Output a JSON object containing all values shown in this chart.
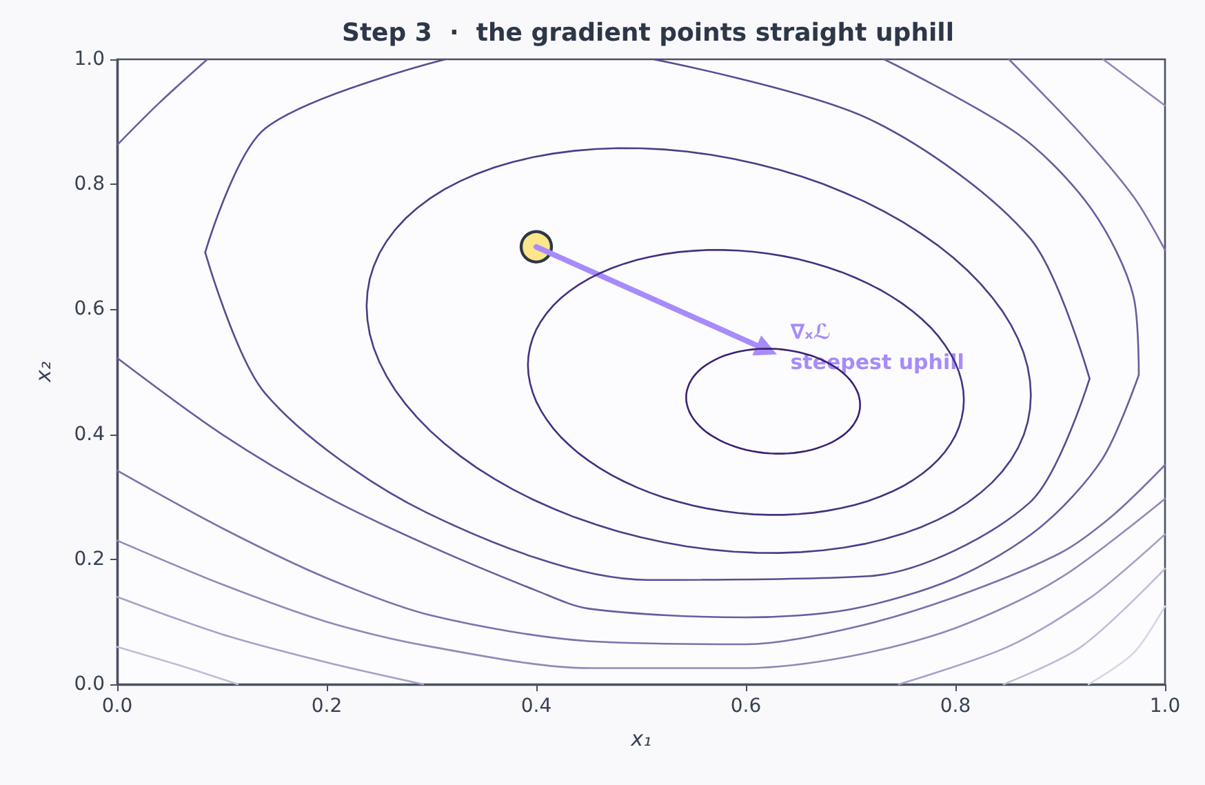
{
  "chart_data": {
    "type": "line",
    "title": "Step 3  ·  the gradient points straight uphill",
    "xlabel": "x₁",
    "ylabel": "x₂",
    "xlim": [
      0,
      1
    ],
    "ylim": [
      0,
      1
    ],
    "xticks": [
      {
        "value": 0,
        "label": "0.0"
      },
      0.2,
      0.4,
      0.6,
      0.8,
      {
        "value": 1,
        "label": "1.0"
      }
    ],
    "yticks": [
      {
        "value": 0,
        "label": "0.0"
      },
      0.2,
      0.4,
      0.6,
      0.8,
      {
        "value": 1,
        "label": "1.0"
      }
    ],
    "marker": "none",
    "annotations": [
      "∇ₓℒ",
      "steepest uphill"
    ],
    "series": [
      {
        "color": "#5a4a93",
        "x": [
          0.084,
          0.141,
          0.313
        ],
        "values": [
          0.691,
          0.889,
          1.0
        ]
      },
      {
        "color": "#5a4a93",
        "x": [
          0.512,
          0.717,
          0.871,
          0.928
        ],
        "values": [
          1.0,
          0.905,
          0.714,
          0.489
        ]
      },
      {
        "color": "#5a4a93",
        "x": [
          0.084,
          0.141,
          0.295,
          0.506,
          0.717,
          0.871,
          0.928
        ],
        "values": [
          0.691,
          0.466,
          0.275,
          0.167,
          0.173,
          0.291,
          0.489
        ]
      },
      {
        "color": "#6a5ca0",
        "x": [
          0,
          0.04,
          0.086
        ],
        "values": [
          0.863,
          0.93,
          1.0
        ]
      },
      {
        "color": "#6a5ca0",
        "x": [
          0.732,
          0.86,
          0.93,
          0.97,
          0.975
        ],
        "values": [
          1.0,
          0.88,
          0.76,
          0.62,
          0.495
        ]
      },
      {
        "color": "#6a5ca0",
        "x": [
          0,
          0.1,
          0.2,
          0.3,
          0.4,
          0.45,
          0.6,
          0.7,
          0.8,
          0.88,
          0.94,
          0.975
        ],
        "values": [
          0.522,
          0.4,
          0.3,
          0.22,
          0.15,
          0.121,
          0.107,
          0.12,
          0.17,
          0.25,
          0.36,
          0.495
        ]
      },
      {
        "color": "#7c70ad",
        "x": [
          0.851,
          0.92,
          0.97,
          1
        ],
        "values": [
          1.0,
          0.88,
          0.78,
          0.695
        ]
      },
      {
        "color": "#7c70ad",
        "x": [
          0,
          0.1,
          0.2,
          0.3,
          0.45,
          0.6,
          0.7,
          0.8,
          0.9,
          0.95,
          1
        ],
        "values": [
          0.342,
          0.25,
          0.17,
          0.11,
          0.069,
          0.064,
          0.09,
          0.14,
          0.21,
          0.27,
          0.351
        ]
      },
      {
        "color": "#9188bb",
        "x": [
          0.941,
          1
        ],
        "values": [
          1.0,
          0.926
        ]
      },
      {
        "color": "#9188bb",
        "x": [
          0,
          0.1,
          0.2,
          0.3,
          0.45,
          0.6,
          0.7,
          0.8,
          0.9,
          1
        ],
        "values": [
          0.23,
          0.16,
          0.1,
          0.06,
          0.026,
          0.026,
          0.045,
          0.09,
          0.17,
          0.297
        ]
      },
      {
        "color": "#a8a1cb",
        "x": [
          0,
          0.1,
          0.2,
          0.292
        ],
        "values": [
          0.14,
          0.08,
          0.035,
          0
        ]
      },
      {
        "color": "#a8a1cb",
        "x": [
          0.746,
          0.85,
          0.93,
          1
        ],
        "values": [
          0,
          0.06,
          0.14,
          0.24
        ]
      },
      {
        "color": "#c1bcda",
        "x": [
          0,
          0.06,
          0.115
        ],
        "values": [
          0.06,
          0.03,
          0
        ]
      },
      {
        "color": "#c1bcda",
        "x": [
          0.846,
          0.92,
          1
        ],
        "values": [
          0,
          0.06,
          0.185
        ]
      },
      {
        "color": "#d8d5e8",
        "x": [
          0.927,
          0.97,
          1
        ],
        "values": [
          0,
          0.05,
          0.125
        ]
      },
      {
        "type": "scatter",
        "marker": "circle",
        "color": "#fde68a",
        "x": [
          0.4
        ],
        "values": [
          0.7
        ]
      },
      {
        "marker": "triangle",
        "color": "#a78bfa",
        "x": [
          0.4,
          0.62
        ],
        "values": [
          0.7,
          0.535
        ]
      }
    ]
  }
}
